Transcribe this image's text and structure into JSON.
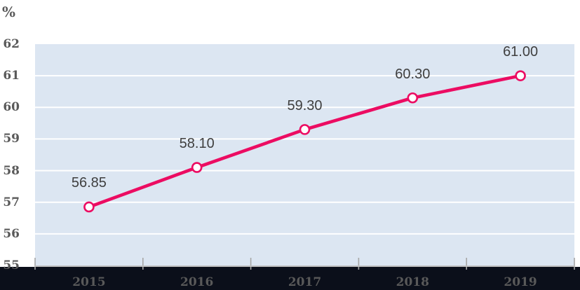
{
  "chart": {
    "unit_label": "%"
  },
  "chart_data": {
    "type": "line",
    "title": "",
    "xlabel": "",
    "ylabel": "%",
    "categories": [
      "2015",
      "2016",
      "2017",
      "2018",
      "2019"
    ],
    "values": [
      56.85,
      58.1,
      59.3,
      60.3,
      61.0
    ],
    "data_labels": [
      "56.85",
      "58.10",
      "59.30",
      "60.30",
      "61.00"
    ],
    "ylim": [
      55,
      62
    ],
    "ytick_step": 1,
    "yticks": [
      55,
      56,
      57,
      58,
      59,
      60,
      61,
      62
    ],
    "grid": "horizontal",
    "legend": "none",
    "marker": "circle-open",
    "x_axis_ticks": "cross-at-category-boundaries"
  },
  "colors": {
    "line": "#EC0C62",
    "marker_fill": "#FFFFFF",
    "plot_background": "#DCE6F2",
    "gridline": "#FFFFFF",
    "axis_line": "#BFBFBF",
    "tick": "#A6A6A6",
    "axis_label_text": "#595959",
    "data_label_text": "#3F3F3F",
    "bottom_band": "#0B0F1A",
    "page_background": "#FFFFFF"
  }
}
